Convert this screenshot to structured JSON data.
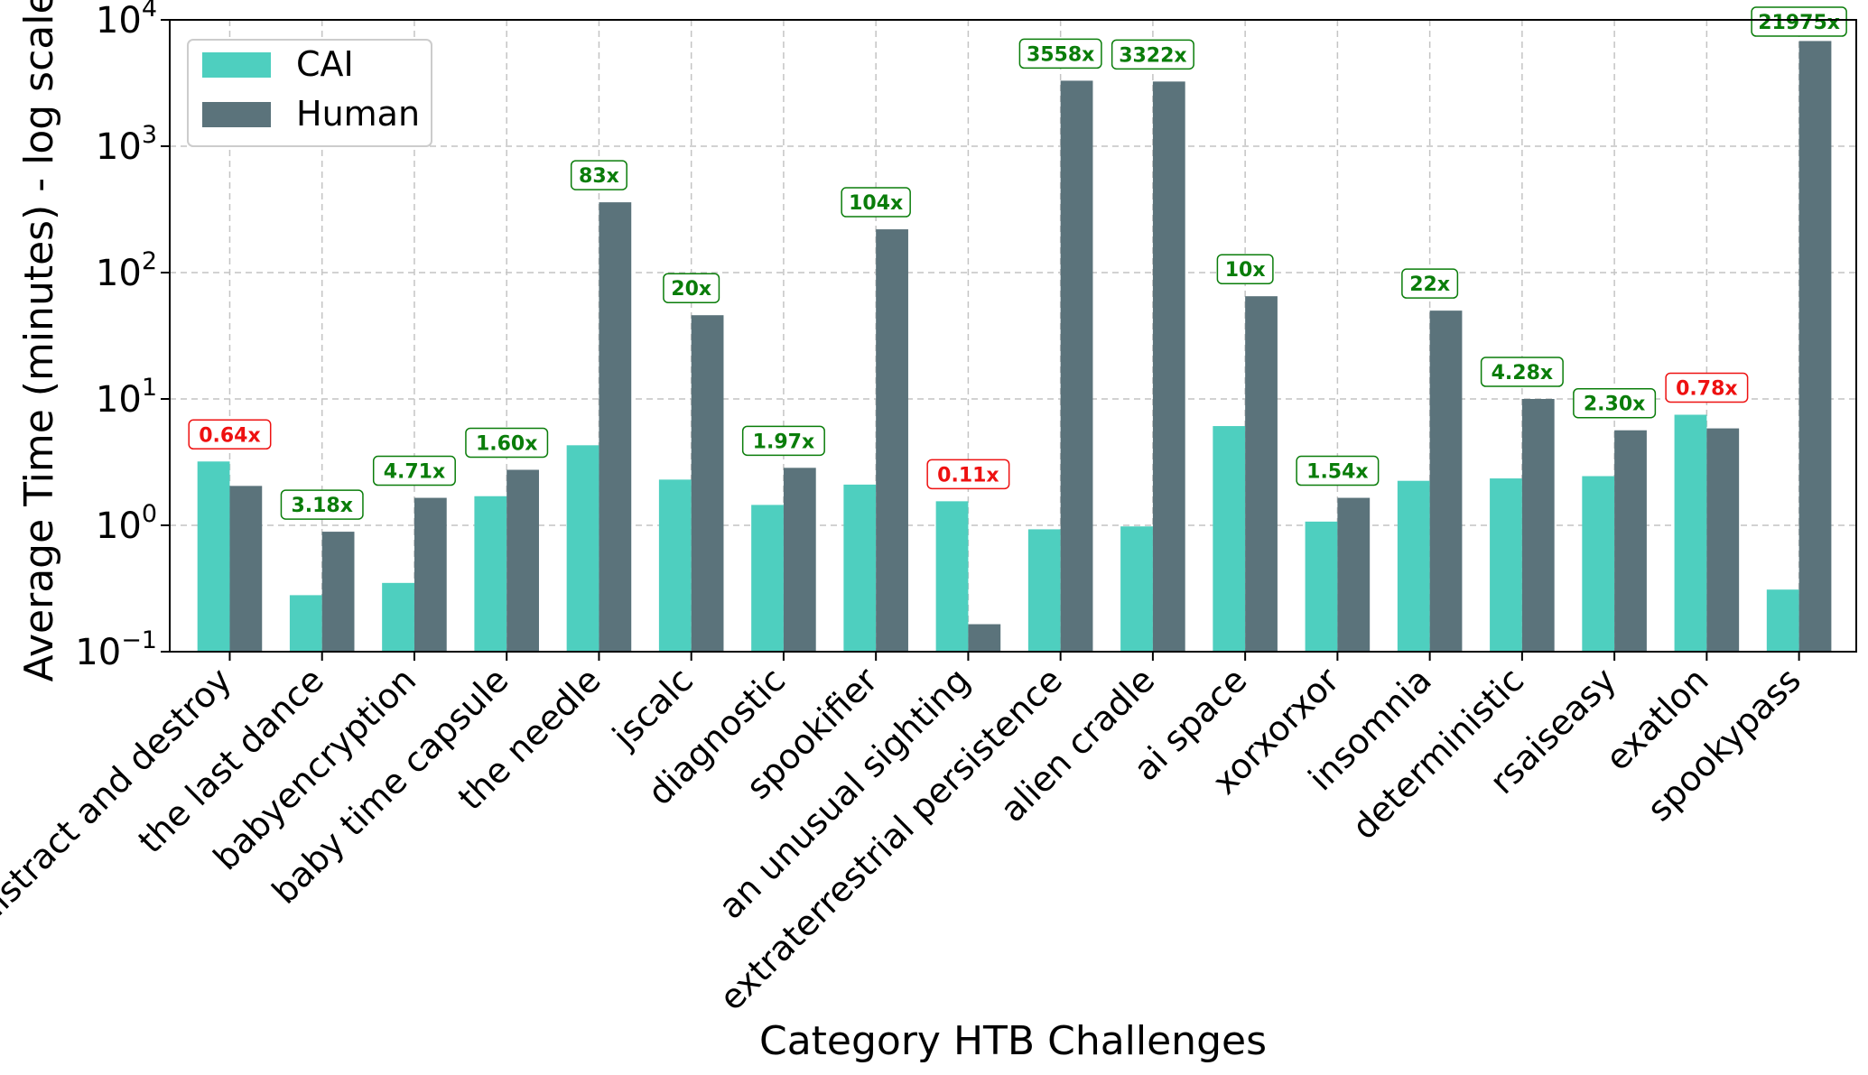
{
  "chart_data": {
    "type": "bar",
    "title": "",
    "xlabel": "Category HTB Challenges",
    "ylabel": "Average Time (minutes) - log scale",
    "yscale": "log",
    "ylim": [
      0.1,
      10000
    ],
    "y_ticks": [
      {
        "value": 0.1,
        "base": "10",
        "exp": "−1"
      },
      {
        "value": 1,
        "base": "10",
        "exp": "0"
      },
      {
        "value": 10,
        "base": "10",
        "exp": "1"
      },
      {
        "value": 100,
        "base": "10",
        "exp": "2"
      },
      {
        "value": 1000,
        "base": "10",
        "exp": "3"
      },
      {
        "value": 10000,
        "base": "10",
        "exp": "4"
      }
    ],
    "grid": true,
    "legend_position": "top-left",
    "categories": [
      "distract and destroy",
      "the last dance",
      "babyencryption",
      "baby time capsule",
      "the needle",
      "jscalc",
      "diagnostic",
      "spookifier",
      "an unusual sighting",
      "extraterrestrial persistence",
      "alien cradle",
      "ai space",
      "xorxorxor",
      "insomnia",
      "deterministic",
      "rsaiseasy",
      "exatlon",
      "spookypass"
    ],
    "series": [
      {
        "name": "CAI",
        "color": "#4ecfbf",
        "values": [
          3.2,
          0.28,
          0.35,
          1.7,
          4.3,
          2.3,
          1.45,
          2.1,
          1.55,
          0.93,
          0.98,
          6.1,
          1.07,
          2.25,
          2.35,
          2.45,
          7.5,
          0.31
        ]
      },
      {
        "name": "Human",
        "color": "#5b737b",
        "values": [
          2.05,
          0.89,
          1.65,
          2.75,
          360,
          46,
          2.85,
          220,
          0.165,
          3300,
          3250,
          65,
          1.65,
          50,
          10,
          5.65,
          5.85,
          6800
        ]
      }
    ],
    "ratio_labels": [
      {
        "text": "0.64x",
        "favorable": false
      },
      {
        "text": "3.18x",
        "favorable": true
      },
      {
        "text": "4.71x",
        "favorable": true
      },
      {
        "text": "1.60x",
        "favorable": true
      },
      {
        "text": "83x",
        "favorable": true
      },
      {
        "text": "20x",
        "favorable": true
      },
      {
        "text": "1.97x",
        "favorable": true
      },
      {
        "text": "104x",
        "favorable": true
      },
      {
        "text": "0.11x",
        "favorable": false
      },
      {
        "text": "3558x",
        "favorable": true
      },
      {
        "text": "3322x",
        "favorable": true
      },
      {
        "text": "10x",
        "favorable": true
      },
      {
        "text": "1.54x",
        "favorable": true
      },
      {
        "text": "22x",
        "favorable": true
      },
      {
        "text": "4.28x",
        "favorable": true
      },
      {
        "text": "2.30x",
        "favorable": true
      },
      {
        "text": "0.78x",
        "favorable": false
      },
      {
        "text": "21975x",
        "favorable": true
      }
    ],
    "ratio_colors": {
      "favorable": "#0a7d0a",
      "unfavorable": "#ee1111"
    }
  }
}
